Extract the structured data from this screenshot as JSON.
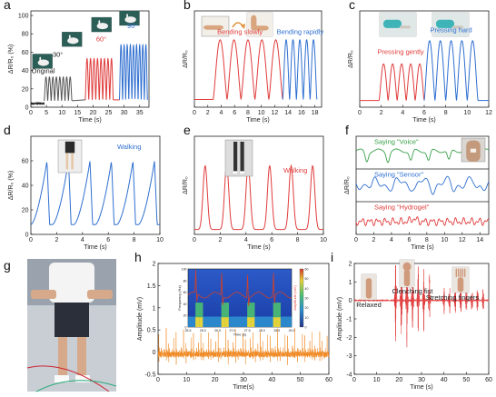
{
  "colors": {
    "black": "#222222",
    "gray": "#555555",
    "red": "#e03c3c",
    "blue": "#2f6fd0",
    "green": "#3aa04a",
    "orange": "#f08a24",
    "spectrogram_line": "#d0402a"
  },
  "chart_data": [
    {
      "id": "a",
      "type": "line",
      "letter": "a",
      "xlabel": "Time (s)",
      "ylabel": "ΔR/R₀ (%)",
      "xlim": [
        0,
        38
      ],
      "ylim": [
        0,
        105
      ],
      "xticks": [
        0,
        5,
        10,
        15,
        20,
        25,
        30,
        35
      ],
      "yticks": [
        0,
        20,
        40,
        60,
        80,
        100
      ],
      "segments": [
        {
          "label": "Original",
          "color": "#222222",
          "x_start": 0,
          "x_end": 4.3,
          "amplitude": 0,
          "baseline": 4,
          "n_peaks": 0
        },
        {
          "label": "30°",
          "color": "#555555",
          "x_start": 4.3,
          "x_end": 13.2,
          "amplitude": 26,
          "baseline": 7,
          "n_peaks": 8
        },
        {
          "label": "60°",
          "color": "#e03c3c",
          "x_start": 17.5,
          "x_end": 26.5,
          "amplitude": 45,
          "baseline": 8,
          "n_peaks": 8
        },
        {
          "label": "90°",
          "color": "#2f6fd0",
          "x_start": 28.5,
          "x_end": 37.5,
          "amplitude": 60,
          "baseline": 8,
          "n_peaks": 9
        }
      ],
      "labels": [
        "Original",
        "30°",
        "60°",
        "90°"
      ]
    },
    {
      "id": "b",
      "type": "line",
      "letter": "b",
      "xlabel": "Time (s)",
      "ylabel": "ΔR/R₀",
      "xlim": [
        0,
        19
      ],
      "ylim": [
        0,
        1
      ],
      "xticks": [
        0,
        2,
        4,
        6,
        8,
        10,
        12,
        14,
        16,
        18
      ],
      "segments": [
        {
          "label": "Bending slowly",
          "color": "#e03c3c",
          "x_start": 2.8,
          "x_end": 13.2,
          "amplitude": 0.62,
          "baseline": 0.08,
          "n_peaks": 5
        },
        {
          "label": "Bending rapidly",
          "color": "#2f6fd0",
          "x_start": 13.2,
          "x_end": 18.3,
          "amplitude": 0.62,
          "baseline": 0.08,
          "n_peaks": 5
        }
      ],
      "labels": [
        "Bending slowly",
        "Bending rapidly"
      ]
    },
    {
      "id": "c",
      "type": "line",
      "letter": "c",
      "xlabel": "Time (s)",
      "ylabel": "ΔR/R₀",
      "xlim": [
        0,
        12
      ],
      "ylim": [
        0,
        1
      ],
      "xticks": [
        0,
        2,
        4,
        6,
        8,
        10,
        12
      ],
      "segments": [
        {
          "label": "Pressing gently",
          "color": "#e03c3c",
          "x_start": 1.8,
          "x_end": 6.0,
          "amplitude": 0.38,
          "baseline": 0.07,
          "n_peaks": 5
        },
        {
          "label": "Pressing hard",
          "color": "#2f6fd0",
          "x_start": 6.0,
          "x_end": 11.0,
          "amplitude": 0.62,
          "baseline": 0.07,
          "n_peaks": 5
        }
      ],
      "labels": [
        "Pressing gently",
        "Pressing hard"
      ]
    },
    {
      "id": "d",
      "type": "line",
      "letter": "d",
      "xlabel": "Time (s)",
      "ylabel": "ΔR/R₀ (%)",
      "xlim": [
        0,
        10
      ],
      "ylim": [
        0,
        80
      ],
      "xticks": [
        0,
        2,
        4,
        6,
        8,
        10
      ],
      "yticks": [
        0,
        20,
        40,
        60
      ],
      "segments": [
        {
          "label": "Walking",
          "color": "#2f6fd0",
          "x_start": 0,
          "x_end": 10,
          "amplitude": 52,
          "baseline": 8,
          "n_peaks": 6
        }
      ],
      "labels": [
        "Walking"
      ]
    },
    {
      "id": "e",
      "type": "line",
      "letter": "e",
      "xlabel": "Time (s)",
      "ylabel": "ΔR/R₀",
      "xlim": [
        0,
        10
      ],
      "ylim": [
        0,
        1
      ],
      "xticks": [
        0,
        2,
        4,
        6,
        8,
        10
      ],
      "segments": [
        {
          "label": "Walking",
          "color": "#e03c3c",
          "x_start": 0,
          "x_end": 10,
          "amplitude": 0.65,
          "baseline": 0.05,
          "n_peaks": 6
        }
      ],
      "labels": [
        "Walking"
      ]
    },
    {
      "id": "f",
      "type": "line",
      "letter": "f",
      "xlabel": "Time (s)",
      "ylabel": "ΔR/R₀",
      "xlim": [
        0,
        15
      ],
      "ylim": [
        0,
        1
      ],
      "xticks": [
        0,
        2,
        4,
        6,
        8,
        10,
        12,
        14
      ],
      "series": [
        {
          "name": "Saying \"Voice\"",
          "color": "#3aa04a"
        },
        {
          "name": "Saying \"Sensor\"",
          "color": "#2f6fd0"
        },
        {
          "name": "Saying \"Hydrogel\"",
          "color": "#e03c3c"
        }
      ]
    },
    {
      "id": "h",
      "type": "line",
      "letter": "h",
      "xlabel": "Time(s)",
      "ylabel": "Amplitude (mV)",
      "xlim": [
        0,
        60
      ],
      "ylim": [
        -0.5,
        2.0
      ],
      "xticks": [
        0,
        10,
        20,
        30,
        40,
        50,
        60
      ],
      "yticks": [
        -0.5,
        0.0,
        0.5,
        1.0,
        1.5,
        2.0
      ],
      "series": [
        {
          "name": "",
          "color": "#f08a24"
        }
      ],
      "inset": {
        "type": "heatmap",
        "xlabel": "Time (s)",
        "ylabel": "Frequency (Hz)",
        "xticks": [
          25.5,
          26.0,
          26.5,
          27.0,
          27.5,
          28.0,
          28.5,
          29.0
        ],
        "yticks": [
          0,
          20,
          40,
          60,
          80,
          100
        ],
        "right_ylabel": "Amplitude (mV)",
        "colorbar_ticks": [
          0,
          10,
          20,
          30,
          40,
          50,
          60
        ]
      }
    },
    {
      "id": "i",
      "type": "line",
      "letter": "i",
      "xlabel": "Time (s)",
      "ylabel": "Amplitude (mV)",
      "xlim": [
        0,
        60
      ],
      "ylim": [
        -4,
        2
      ],
      "xticks": [
        0,
        10,
        20,
        30,
        40,
        50,
        60
      ],
      "yticks": [
        -4,
        -3,
        -2,
        -1,
        0,
        1,
        2
      ],
      "series": [
        {
          "name": "",
          "color": "#e03c3c"
        }
      ],
      "labels": [
        "Relaxed",
        "Clenching fist",
        "Stretching fingers"
      ]
    }
  ],
  "panel_g": {
    "letter": "g"
  }
}
